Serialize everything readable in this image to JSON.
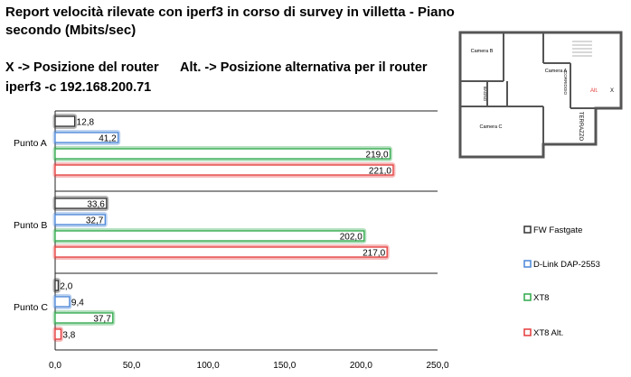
{
  "header": {
    "title": "Report velocità rilevate con iperf3 in corso di survey in villetta - Piano secondo (Mbits/sec)",
    "legend_x": "X -> Posizione del router",
    "legend_alt": "Alt. -> Posizione alternativa per il router",
    "command": "iperf3 -c 192.168.200.71"
  },
  "floorplan": {
    "labels": {
      "camera_b": "Camera B",
      "camera_a": "Camera A",
      "camera_c": "Camera C",
      "bagno": "BAGNO",
      "corridoio": "CORRIDOIO",
      "terrazzo": "TERRAZZO",
      "alt": "Alt.",
      "x": "X"
    }
  },
  "chart_data": {
    "type": "bar",
    "orientation": "horizontal",
    "categories": [
      "Punto A",
      "Punto B",
      "Punto C"
    ],
    "series": [
      {
        "name": "FW Fastgate",
        "color": "#333333",
        "values": [
          12.8,
          33.6,
          2.0
        ],
        "labels": [
          "12,8",
          "33,6",
          "2,0"
        ]
      },
      {
        "name": "D-Link DAP-2553",
        "color": "#4a86d8",
        "values": [
          41.2,
          32.7,
          9.4
        ],
        "labels": [
          "41,2",
          "32,7",
          "9,4"
        ]
      },
      {
        "name": "XT8",
        "color": "#2ea84a",
        "values": [
          219.0,
          202.0,
          37.7
        ],
        "labels": [
          "219,0",
          "202,0",
          "37,7"
        ]
      },
      {
        "name": "XT8 Alt.",
        "color": "#e53b3b",
        "values": [
          221.0,
          217.0,
          3.8
        ],
        "labels": [
          "221,0",
          "217,0",
          "3,8"
        ]
      }
    ],
    "xlim": [
      0,
      250
    ],
    "xticks": [
      0,
      50,
      100,
      150,
      200,
      250
    ],
    "xtick_labels": [
      "0,0",
      "50,0",
      "100,0",
      "150,0",
      "200,0",
      "250,0"
    ],
    "legend_position": "right"
  }
}
